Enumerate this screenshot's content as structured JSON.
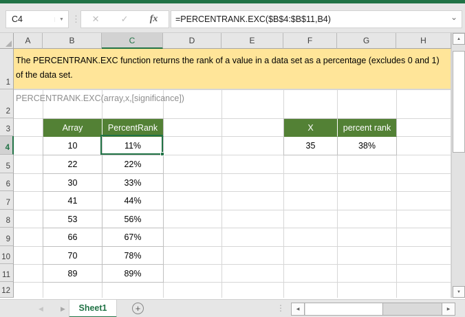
{
  "formula_bar": {
    "cell_reference": "C4",
    "formula": "=PERCENTRANK.EXC($B$4:$B$11,B4)"
  },
  "icons": {
    "dropdown": "▼",
    "cancel": "✕",
    "enter": "✓",
    "function": "fx",
    "expand": "⌄",
    "dots": "⋮",
    "scroll_up": "▲",
    "scroll_down": "▼",
    "scroll_left": "◀",
    "scroll_right": "▶",
    "nav_prev": "◀",
    "nav_next": "▶",
    "add_sheet": "+"
  },
  "grid": {
    "column_headers": [
      "A",
      "B",
      "C",
      "D",
      "E",
      "F",
      "G",
      "H"
    ],
    "row_headers": [
      "1",
      "2",
      "3",
      "4",
      "5",
      "6",
      "7",
      "8",
      "9",
      "10",
      "11",
      "12"
    ],
    "selected_column": "C",
    "selected_row": "4",
    "note": "The PERCENTRANK.EXC function returns the rank of a value in a data set as a percentage (excludes 0 and 1) of the data set.",
    "syntax": "PERCENTRANK.EXC(array,x,[significance])"
  },
  "array_table": {
    "headers": [
      "Array",
      "PercentRank"
    ],
    "rows": [
      [
        "10",
        "11%"
      ],
      [
        "22",
        "22%"
      ],
      [
        "30",
        "33%"
      ],
      [
        "41",
        "44%"
      ],
      [
        "53",
        "56%"
      ],
      [
        "66",
        "67%"
      ],
      [
        "70",
        "78%"
      ],
      [
        "89",
        "89%"
      ]
    ]
  },
  "x_table": {
    "headers": [
      "X",
      "percent rank"
    ],
    "rows": [
      [
        "35",
        "38%"
      ]
    ]
  },
  "sheet_bar": {
    "active_tab": "Sheet1"
  },
  "colors": {
    "excel_green": "#217346",
    "table_header_green": "#538135",
    "note_yellow": "#ffe599"
  }
}
